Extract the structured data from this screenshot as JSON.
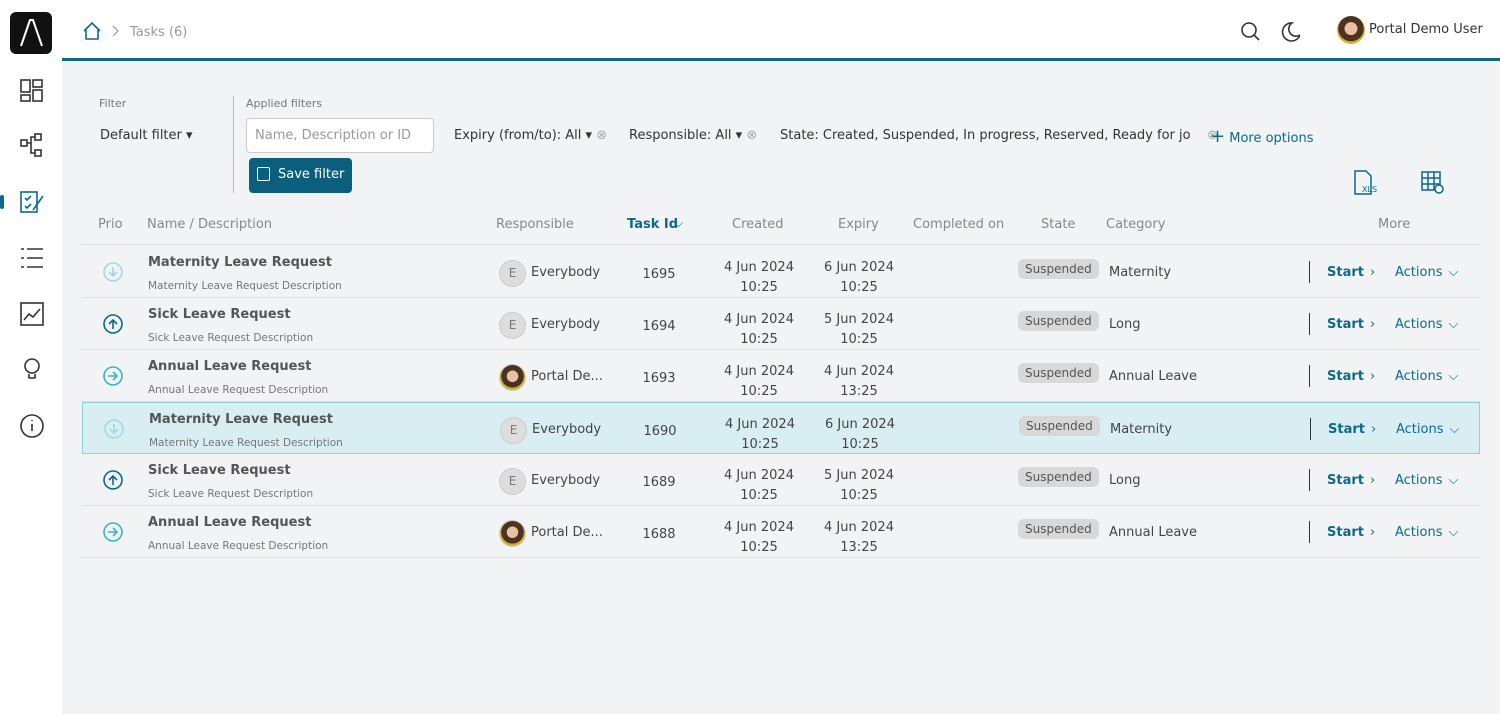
{
  "breadcrumb": {
    "current": "Tasks (6)"
  },
  "user": {
    "name": "Portal Demo User"
  },
  "filter": {
    "label": "Filter",
    "value": "Default filter",
    "applied_label": "Applied filters",
    "search_placeholder": "Name, Description or ID",
    "chips": [
      "Expiry (from/to): All",
      "Responsible: All",
      "State: Created, Suspended, In progress, Reserved, Ready for jo"
    ],
    "more": "More options",
    "save": "Save filter"
  },
  "table": {
    "headers": [
      "Prio",
      "Name / Description",
      "Responsible",
      "Task Id",
      "Created",
      "Expiry",
      "Completed on",
      "State",
      "Category",
      "More"
    ],
    "start": "Start",
    "actions": "Actions",
    "rows": [
      {
        "name": "Maternity Leave Request",
        "description": "Maternity Leave Request Description",
        "initial": "E",
        "responsible": "Everybody",
        "id": "1695",
        "created_date": "4 Jun 2024",
        "created_time": "10:25",
        "expiry_date": "6 Jun 2024",
        "expiry_time": "10:25",
        "state": "Suspended",
        "category": "Maternity"
      },
      {
        "name": "Sick Leave Request",
        "description": "Sick Leave Request Description",
        "initial": "E",
        "responsible": "Everybody",
        "id": "1694",
        "created_date": "4 Jun 2024",
        "created_time": "10:25",
        "expiry_date": "5 Jun 2024",
        "expiry_time": "10:25",
        "state": "Suspended",
        "category": "Long"
      },
      {
        "name": "Annual Leave Request",
        "description": "Annual Leave Request Description",
        "responsible": "Portal De...",
        "id": "1693",
        "created_date": "4 Jun 2024",
        "created_time": "10:25",
        "expiry_date": "4 Jun 2024",
        "expiry_time": "13:25",
        "state": "Suspended",
        "category": "Annual Leave"
      },
      {
        "name": "Maternity Leave Request",
        "description": "Maternity Leave Request Description",
        "initial": "E",
        "responsible": "Everybody",
        "id": "1690",
        "created_date": "4 Jun 2024",
        "created_time": "10:25",
        "expiry_date": "6 Jun 2024",
        "expiry_time": "10:25",
        "state": "Suspended",
        "category": "Maternity"
      },
      {
        "name": "Sick Leave Request",
        "description": "Sick Leave Request Description",
        "initial": "E",
        "responsible": "Everybody",
        "id": "1689",
        "created_date": "4 Jun 2024",
        "created_time": "10:25",
        "expiry_date": "5 Jun 2024",
        "expiry_time": "10:25",
        "state": "Suspended",
        "category": "Long"
      },
      {
        "name": "Annual Leave Request",
        "description": "Annual Leave Request Description",
        "responsible": "Portal De...",
        "id": "1688",
        "created_date": "4 Jun 2024",
        "created_time": "10:25",
        "expiry_date": "4 Jun 2024",
        "expiry_time": "13:25",
        "state": "Suspended",
        "category": "Annual Leave"
      }
    ]
  }
}
